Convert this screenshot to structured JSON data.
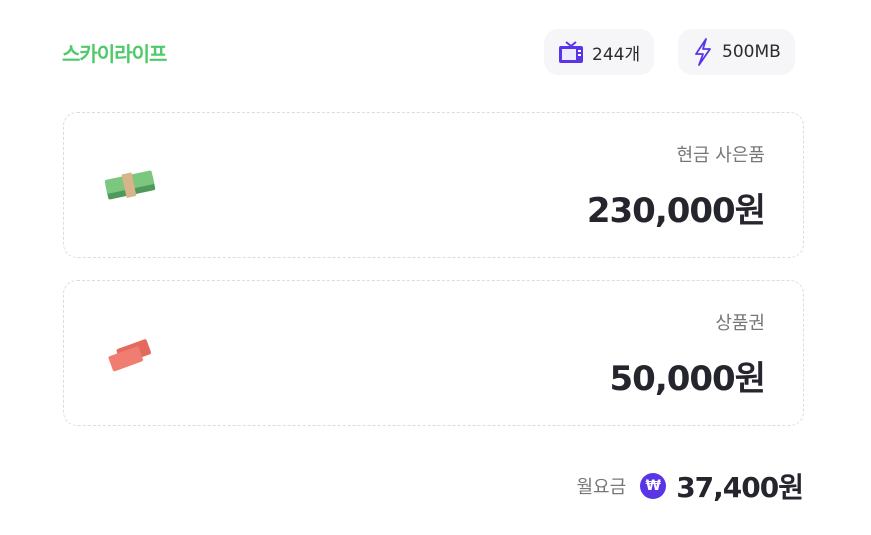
{
  "brand": {
    "logo": "스카이라이프",
    "color": "#4fc96a"
  },
  "chips": [
    {
      "icon": "tv-icon",
      "label": "244개"
    },
    {
      "icon": "lightning-icon",
      "label": "500MB"
    }
  ],
  "benefits": [
    {
      "icon": "cash-stack-icon",
      "label": "현금 사은품",
      "value": "230,000원"
    },
    {
      "icon": "coupon-icon",
      "label": "상품권",
      "value": "50,000원"
    }
  ],
  "fee": {
    "label": "월요금",
    "currency_symbol": "₩",
    "amount": "37,400원",
    "accent": "#5a35e8"
  }
}
